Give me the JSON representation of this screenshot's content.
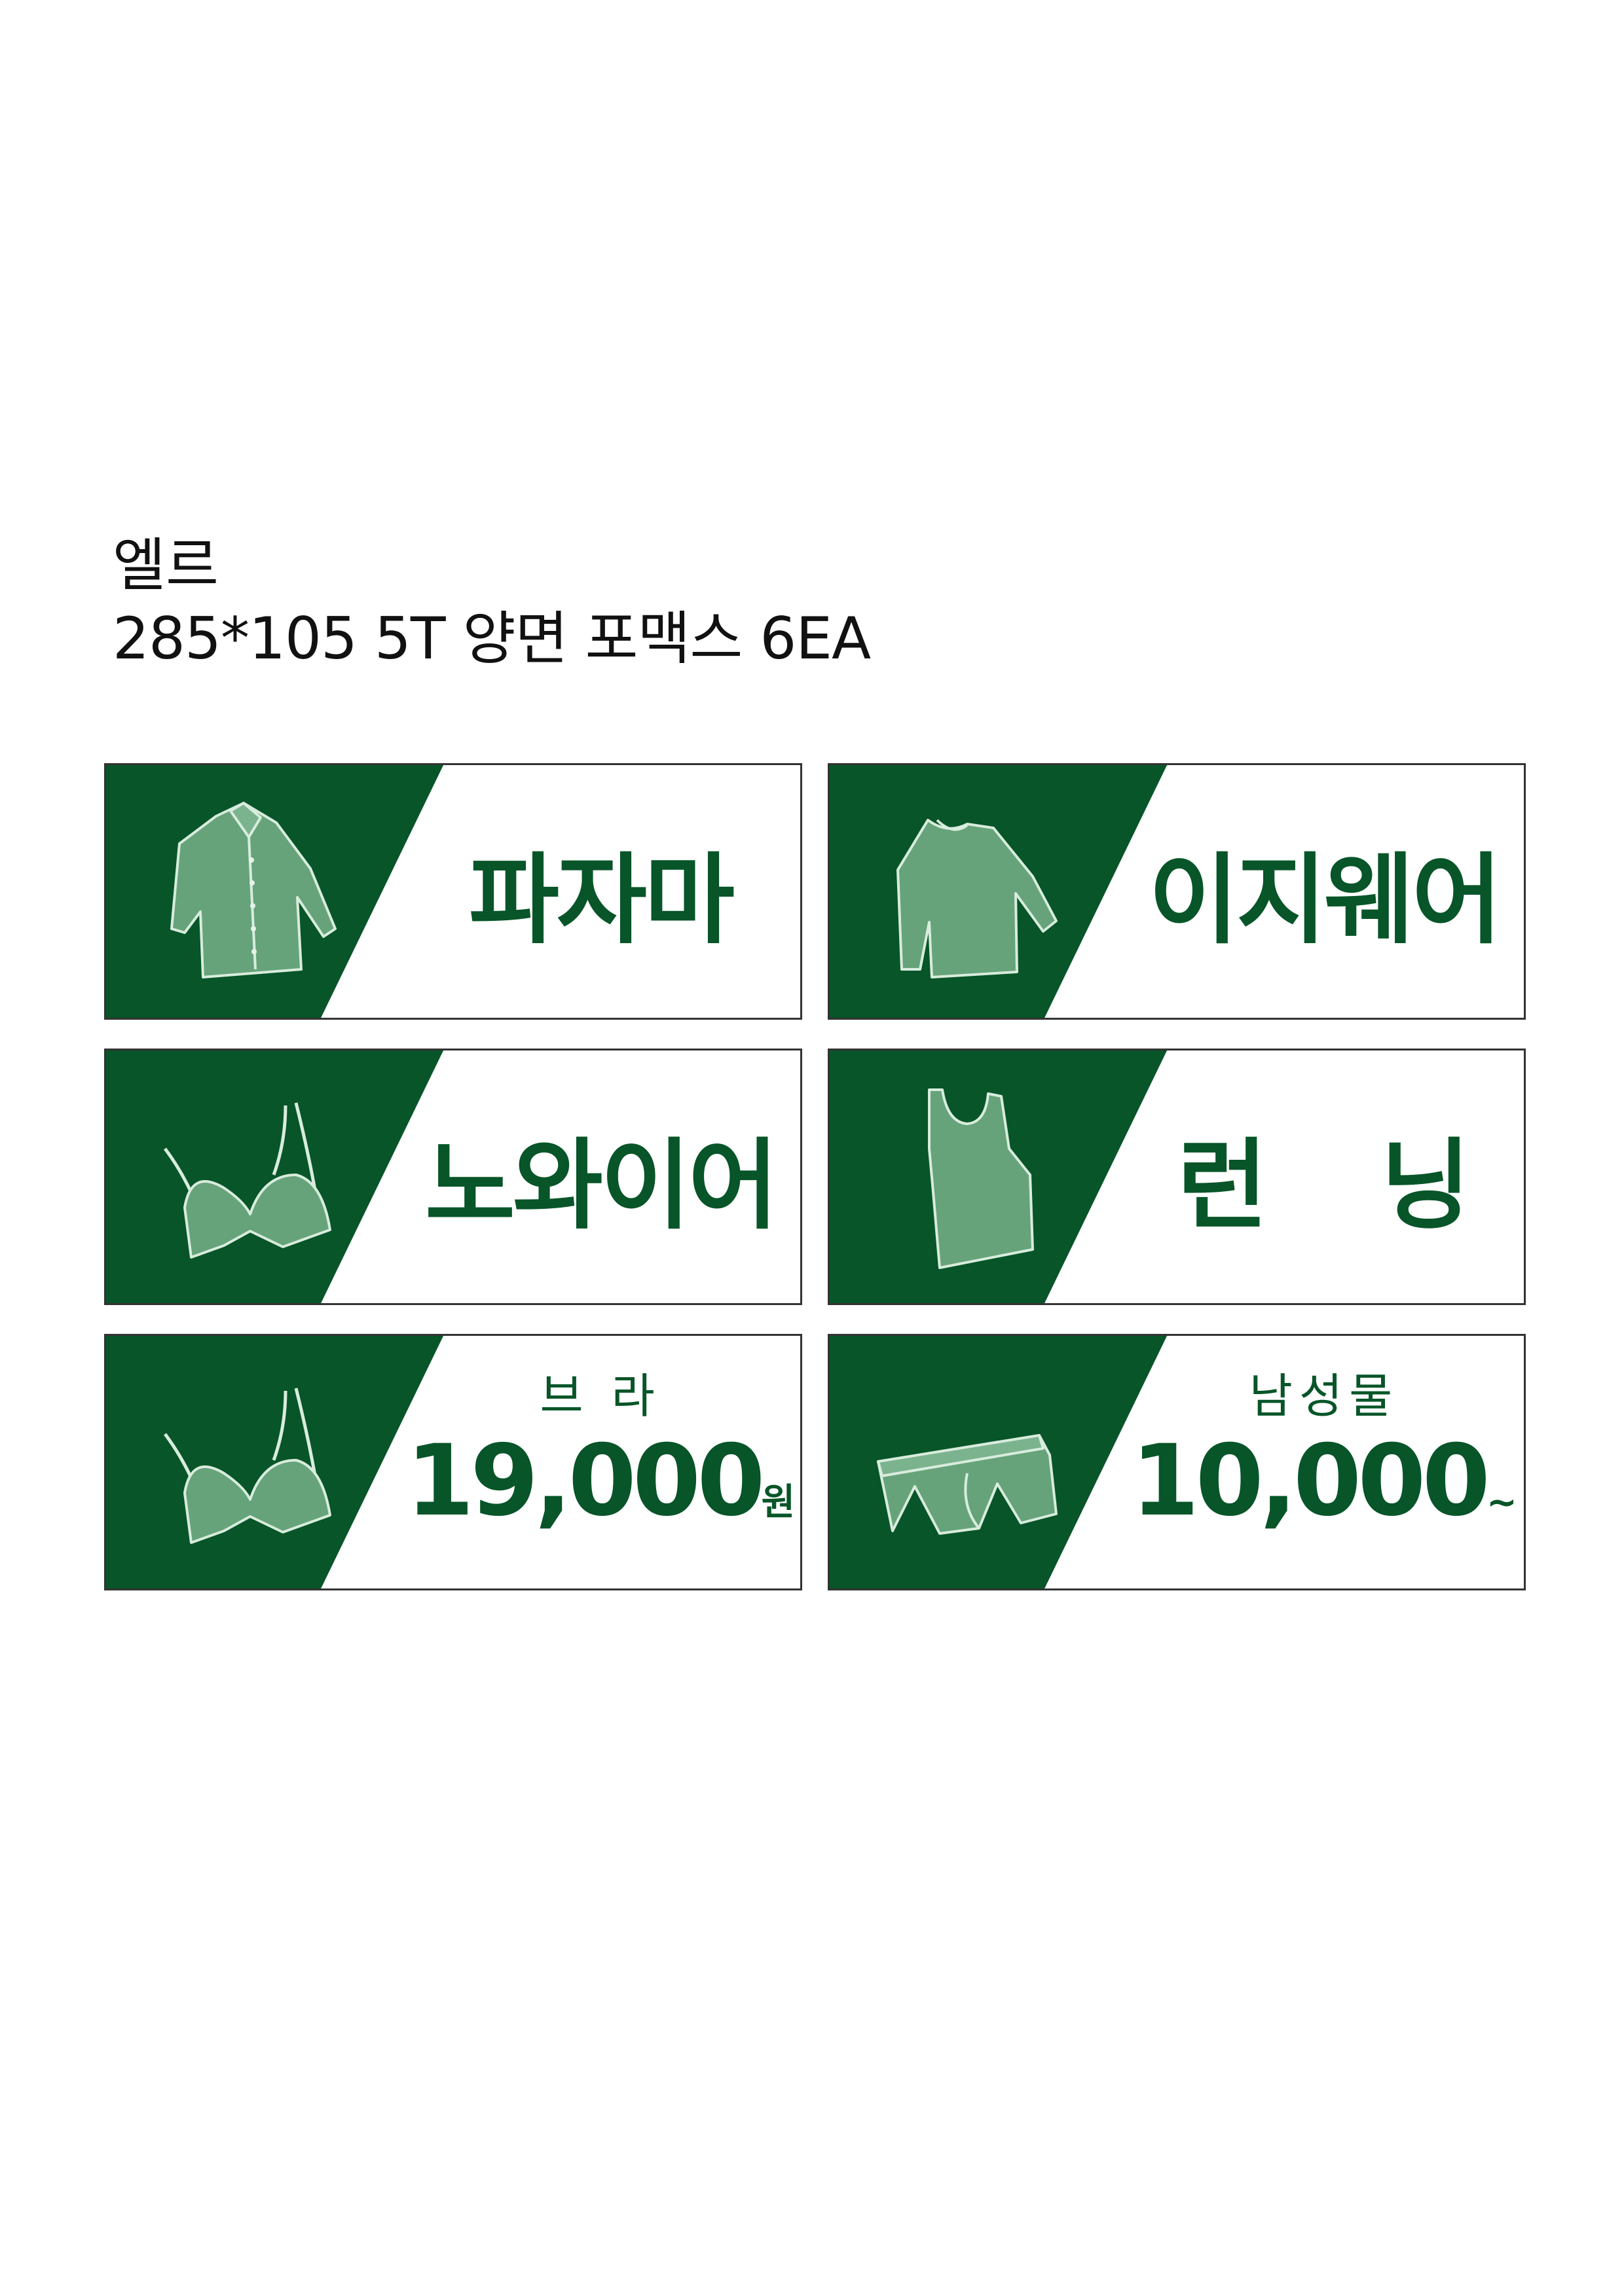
{
  "header": {
    "brand": "엘르",
    "spec": "285*105 5T 양면 포맥스 6EA"
  },
  "colors": {
    "dark_green": "#075528",
    "icon_green": "#66a37a",
    "icon_outline": "#d8ecdd",
    "border": "#333333"
  },
  "signs": [
    {
      "icon": "shirt-icon",
      "label": "파자마"
    },
    {
      "icon": "sweater-icon",
      "label": "이지웨어"
    },
    {
      "icon": "bra-icon",
      "label": "노와이어"
    },
    {
      "icon": "tank-top-icon",
      "label": "런 닝"
    },
    {
      "icon": "bra-icon",
      "top": "브 라",
      "price": "19,000",
      "unit": "원"
    },
    {
      "icon": "boxer-briefs-icon",
      "top": "남성물",
      "price": "10,000",
      "unit": "~"
    }
  ]
}
